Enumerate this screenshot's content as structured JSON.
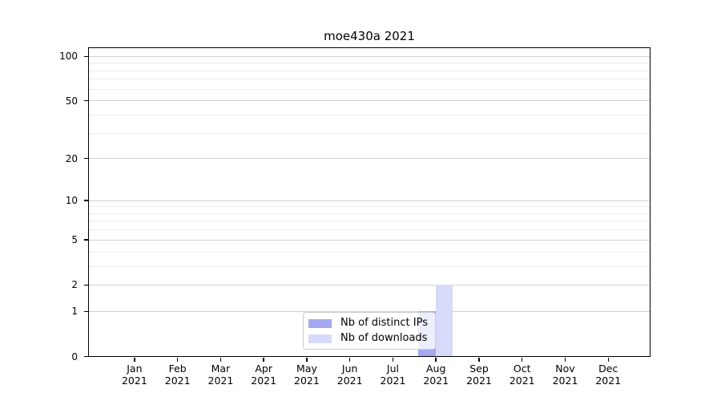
{
  "chart_data": {
    "type": "bar",
    "title": "moe430a 2021",
    "categories": [
      [
        "Jan",
        "2021"
      ],
      [
        "Feb",
        "2021"
      ],
      [
        "Mar",
        "2021"
      ],
      [
        "Apr",
        "2021"
      ],
      [
        "May",
        "2021"
      ],
      [
        "Jun",
        "2021"
      ],
      [
        "Jul",
        "2021"
      ],
      [
        "Aug",
        "2021"
      ],
      [
        "Sep",
        "2021"
      ],
      [
        "Oct",
        "2021"
      ],
      [
        "Nov",
        "2021"
      ],
      [
        "Dec",
        "2021"
      ]
    ],
    "series": [
      {
        "name": "Nb of distinct IPs",
        "color": "#a5a8f0",
        "values": [
          0,
          0,
          0,
          0,
          0,
          0,
          0,
          1,
          0,
          0,
          0,
          0
        ]
      },
      {
        "name": "Nb of downloads",
        "color": "#d7daf9",
        "values": [
          0,
          0,
          0,
          0,
          0,
          0,
          0,
          2,
          0,
          0,
          0,
          0
        ]
      }
    ],
    "yticks": [
      0,
      1,
      2,
      5,
      10,
      20,
      50,
      100
    ],
    "minor_yticks": [
      3,
      4,
      6,
      7,
      8,
      9,
      30,
      40,
      60,
      70,
      80,
      90
    ],
    "ylim": [
      0,
      113
    ],
    "yscale": "log1p",
    "grid": "horizontal-only",
    "legend_position": "lower center",
    "background_color": "#ffffff",
    "gridline_minor_color": "#ececec",
    "gridline_major_color": "#d2d2d2"
  }
}
